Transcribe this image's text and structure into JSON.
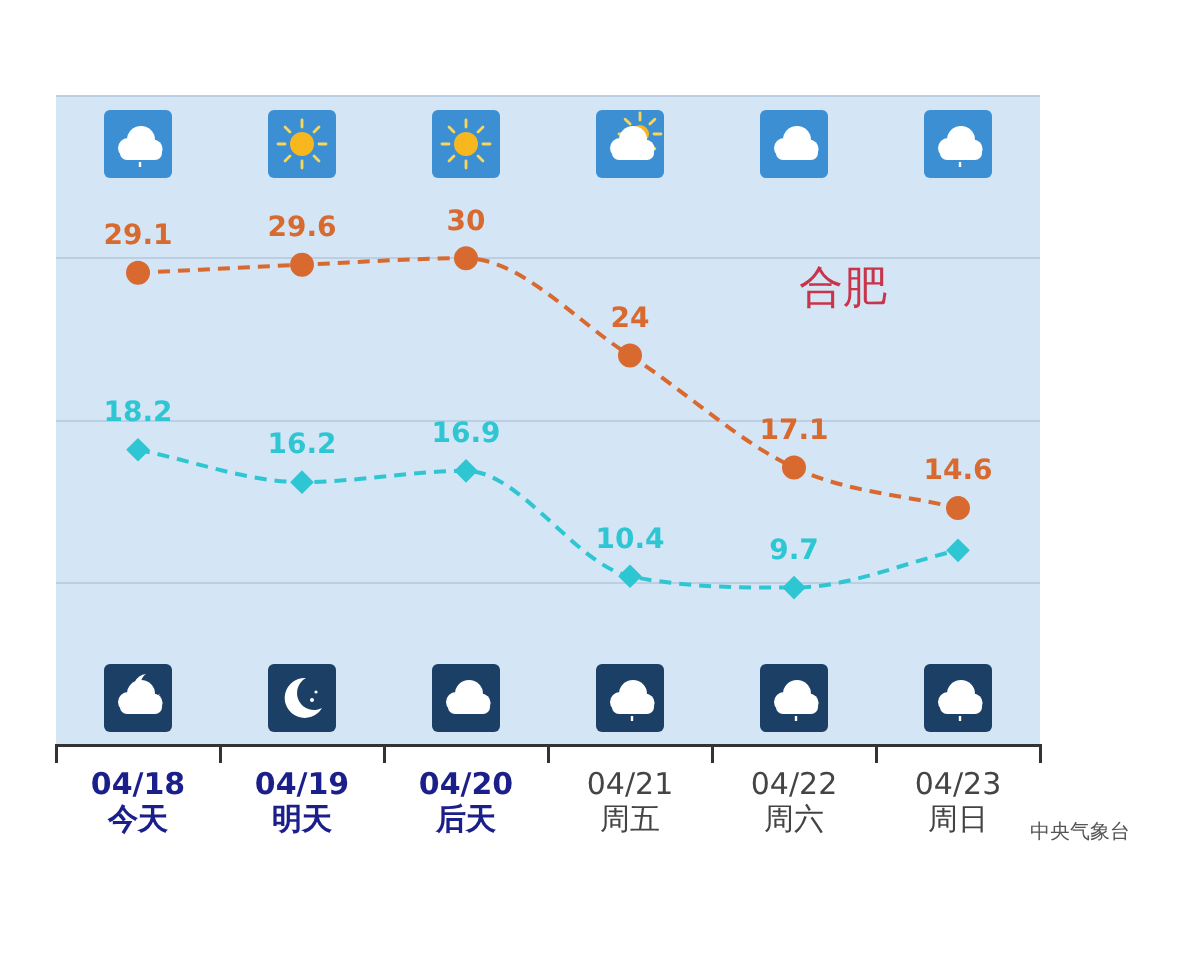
{
  "chart_data": {
    "type": "line",
    "title": "合肥",
    "annotations": [
      "中央气象台"
    ],
    "categories": [
      "04/18\n今天",
      "04/19\n明天",
      "04/20\n后天",
      "04/21\n周五",
      "04/22\n周六",
      "04/23\n周日"
    ],
    "series": [
      {
        "color": "#d8692f",
        "marker": "circle",
        "line_style": "dashed",
        "values": [
          29.1,
          29.6,
          30,
          24,
          17.1,
          14.6
        ],
        "value_labels": [
          "29.1",
          "29.6",
          "30",
          "24",
          "17.1",
          "14.6"
        ]
      },
      {
        "color": "#2ec6d3",
        "marker": "diamond",
        "line_style": "dashed",
        "values": [
          18.2,
          16.2,
          16.9,
          10.4,
          9.7,
          12
        ],
        "value_labels": [
          "18.2",
          "16.2",
          "16.9",
          "10.4",
          "9.7",
          null
        ]
      }
    ],
    "ylim": [
      0,
      40
    ],
    "yticks": [
      {
        "value": 0,
        "label": null
      },
      {
        "value": 10,
        "label": null
      },
      {
        "value": 20,
        "label": null
      },
      {
        "value": 30,
        "label": null
      },
      {
        "value": 40,
        "label": null
      }
    ],
    "grid": "y",
    "tick_labels": "x"
  }
}
